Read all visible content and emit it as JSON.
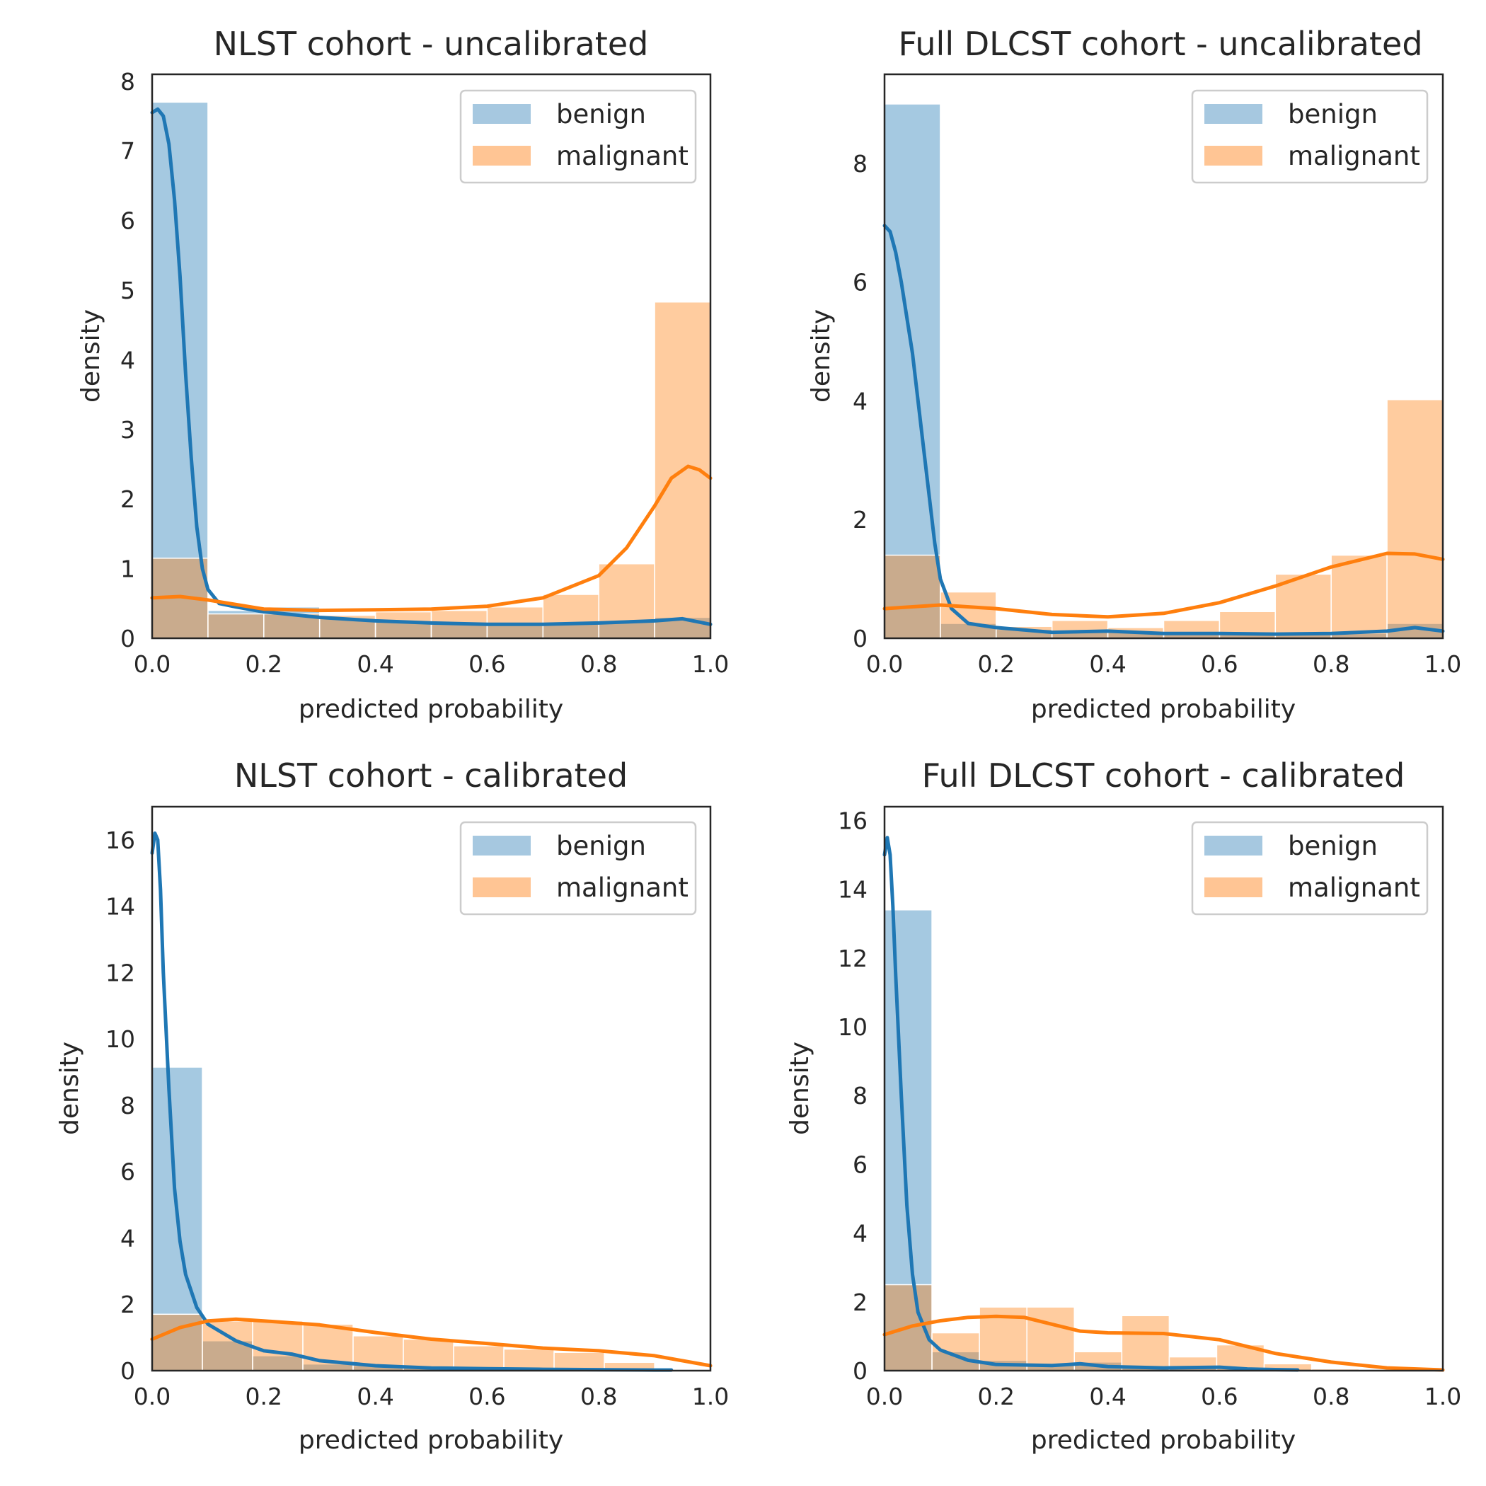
{
  "colors": {
    "benign": "#1f77b4",
    "benign_bar": "#a6c8e0",
    "malignant": "#ff7f0e",
    "malignant_bar": "#ffc594",
    "overlap_bar": "#c2a48a",
    "axis": "#262626"
  },
  "chart_data": [
    {
      "type": "bar",
      "title": "NLST cohort - uncalibrated",
      "xlabel": "predicted probability",
      "ylabel": "density",
      "xlim": [
        0,
        1
      ],
      "ylim": [
        0,
        8.1
      ],
      "xticks": [
        "0.0",
        "0.2",
        "0.4",
        "0.6",
        "0.8",
        "1.0"
      ],
      "yticks": [
        "0",
        "1",
        "2",
        "3",
        "4",
        "5",
        "6",
        "7",
        "8"
      ],
      "ytick_values": [
        0,
        1,
        2,
        3,
        4,
        5,
        6,
        7,
        8
      ],
      "grid": false,
      "legend_position": "top-right",
      "bin_edges": [
        0,
        0.1,
        0.2,
        0.3,
        0.4,
        0.5,
        0.6,
        0.7,
        0.8,
        0.9,
        1.0
      ],
      "series": [
        {
          "name": "benign",
          "hist": [
            7.7,
            0.4,
            0.45,
            0.28,
            0.25,
            0.22,
            0.22,
            0.22,
            0.25,
            0.3
          ],
          "kde": [
            [
              0,
              7.55
            ],
            [
              0.01,
              7.6
            ],
            [
              0.02,
              7.5
            ],
            [
              0.03,
              7.1
            ],
            [
              0.04,
              6.3
            ],
            [
              0.05,
              5.2
            ],
            [
              0.06,
              3.8
            ],
            [
              0.07,
              2.6
            ],
            [
              0.08,
              1.6
            ],
            [
              0.09,
              1.0
            ],
            [
              0.1,
              0.7
            ],
            [
              0.12,
              0.5
            ],
            [
              0.15,
              0.45
            ],
            [
              0.2,
              0.38
            ],
            [
              0.3,
              0.3
            ],
            [
              0.4,
              0.25
            ],
            [
              0.5,
              0.22
            ],
            [
              0.6,
              0.2
            ],
            [
              0.7,
              0.2
            ],
            [
              0.8,
              0.22
            ],
            [
              0.9,
              0.25
            ],
            [
              0.95,
              0.28
            ],
            [
              1.0,
              0.2
            ]
          ]
        },
        {
          "name": "malignant",
          "hist": [
            1.15,
            0.35,
            0.35,
            0.33,
            0.38,
            0.4,
            0.45,
            0.63,
            1.07,
            4.83
          ],
          "kde": [
            [
              0,
              0.58
            ],
            [
              0.05,
              0.6
            ],
            [
              0.1,
              0.55
            ],
            [
              0.2,
              0.42
            ],
            [
              0.3,
              0.4
            ],
            [
              0.4,
              0.41
            ],
            [
              0.5,
              0.42
            ],
            [
              0.6,
              0.46
            ],
            [
              0.7,
              0.58
            ],
            [
              0.8,
              0.9
            ],
            [
              0.85,
              1.3
            ],
            [
              0.9,
              1.9
            ],
            [
              0.93,
              2.3
            ],
            [
              0.96,
              2.47
            ],
            [
              0.98,
              2.42
            ],
            [
              1.0,
              2.3
            ]
          ]
        }
      ]
    },
    {
      "type": "bar",
      "title": "Full DLCST cohort - uncalibrated",
      "xlabel": "predicted probability",
      "ylabel": "density",
      "xlim": [
        0,
        1
      ],
      "ylim": [
        0,
        9.5
      ],
      "xticks": [
        "0.0",
        "0.2",
        "0.4",
        "0.6",
        "0.8",
        "1.0"
      ],
      "yticks": [
        "0",
        "2",
        "4",
        "6",
        "8"
      ],
      "ytick_values": [
        0,
        2,
        4,
        6,
        8
      ],
      "grid": false,
      "legend_position": "top-right",
      "bin_edges": [
        0,
        0.1,
        0.2,
        0.3,
        0.4,
        0.5,
        0.6,
        0.7,
        0.8,
        0.9,
        1.0
      ],
      "series": [
        {
          "name": "benign",
          "hist": [
            9.0,
            0.25,
            0.15,
            0.1,
            0.12,
            0.08,
            0.1,
            0.08,
            0.08,
            0.25
          ],
          "kde": [
            [
              0,
              6.95
            ],
            [
              0.01,
              6.85
            ],
            [
              0.02,
              6.5
            ],
            [
              0.03,
              6.0
            ],
            [
              0.05,
              4.8
            ],
            [
              0.07,
              3.2
            ],
            [
              0.09,
              1.6
            ],
            [
              0.1,
              1.0
            ],
            [
              0.12,
              0.5
            ],
            [
              0.15,
              0.25
            ],
            [
              0.2,
              0.18
            ],
            [
              0.3,
              0.1
            ],
            [
              0.4,
              0.12
            ],
            [
              0.5,
              0.08
            ],
            [
              0.6,
              0.08
            ],
            [
              0.7,
              0.07
            ],
            [
              0.8,
              0.08
            ],
            [
              0.9,
              0.12
            ],
            [
              0.95,
              0.18
            ],
            [
              1.0,
              0.12
            ]
          ]
        },
        {
          "name": "malignant",
          "hist": [
            1.4,
            0.78,
            0.2,
            0.3,
            0.18,
            0.3,
            0.45,
            1.08,
            1.4,
            4.02
          ],
          "kde": [
            [
              0,
              0.5
            ],
            [
              0.1,
              0.56
            ],
            [
              0.2,
              0.5
            ],
            [
              0.3,
              0.4
            ],
            [
              0.4,
              0.36
            ],
            [
              0.5,
              0.42
            ],
            [
              0.6,
              0.6
            ],
            [
              0.7,
              0.88
            ],
            [
              0.8,
              1.2
            ],
            [
              0.9,
              1.43
            ],
            [
              0.95,
              1.42
            ],
            [
              1.0,
              1.33
            ]
          ]
        }
      ]
    },
    {
      "type": "bar",
      "title": "NLST cohort - calibrated",
      "xlabel": "predicted probability",
      "ylabel": "density",
      "xlim": [
        0,
        1
      ],
      "ylim": [
        0,
        17.0
      ],
      "xticks": [
        "0.0",
        "0.2",
        "0.4",
        "0.6",
        "0.8",
        "1.0"
      ],
      "yticks": [
        "0",
        "2",
        "4",
        "6",
        "8",
        "10",
        "12",
        "14",
        "16"
      ],
      "ytick_values": [
        0,
        2,
        4,
        6,
        8,
        10,
        12,
        14,
        16
      ],
      "grid": false,
      "legend_position": "top-right",
      "bin_edges": [
        0,
        0.09,
        0.18,
        0.27,
        0.36,
        0.45,
        0.54,
        0.63,
        0.72,
        0.81,
        0.9
      ],
      "series": [
        {
          "name": "benign",
          "hist": [
            9.15,
            0.9,
            0.45,
            0.2,
            0.15,
            0.08,
            0.05,
            0.03,
            0.03,
            0.02
          ],
          "kde": [
            [
              0,
              15.6
            ],
            [
              0.005,
              16.2
            ],
            [
              0.01,
              16.0
            ],
            [
              0.015,
              14.5
            ],
            [
              0.02,
              12.0
            ],
            [
              0.03,
              8.5
            ],
            [
              0.04,
              5.5
            ],
            [
              0.05,
              3.9
            ],
            [
              0.06,
              2.9
            ],
            [
              0.08,
              1.9
            ],
            [
              0.1,
              1.4
            ],
            [
              0.15,
              0.9
            ],
            [
              0.2,
              0.6
            ],
            [
              0.25,
              0.5
            ],
            [
              0.3,
              0.3
            ],
            [
              0.4,
              0.15
            ],
            [
              0.5,
              0.08
            ],
            [
              0.6,
              0.06
            ],
            [
              0.7,
              0.04
            ],
            [
              0.8,
              0.03
            ],
            [
              0.9,
              0.02
            ],
            [
              0.93,
              0.02
            ]
          ]
        },
        {
          "name": "malignant",
          "hist": [
            1.7,
            1.5,
            1.5,
            1.4,
            1.05,
            0.95,
            0.75,
            0.65,
            0.55,
            0.25
          ],
          "kde": [
            [
              0,
              0.95
            ],
            [
              0.05,
              1.3
            ],
            [
              0.1,
              1.5
            ],
            [
              0.15,
              1.55
            ],
            [
              0.2,
              1.5
            ],
            [
              0.3,
              1.38
            ],
            [
              0.4,
              1.15
            ],
            [
              0.5,
              0.95
            ],
            [
              0.6,
              0.82
            ],
            [
              0.7,
              0.68
            ],
            [
              0.8,
              0.6
            ],
            [
              0.9,
              0.45
            ],
            [
              1.0,
              0.15
            ]
          ]
        }
      ]
    },
    {
      "type": "bar",
      "title": "Full DLCST cohort - calibrated",
      "xlabel": "predicted probability",
      "ylabel": "density",
      "xlim": [
        0,
        1
      ],
      "ylim": [
        0,
        16.4
      ],
      "xticks": [
        "0.0",
        "0.2",
        "0.4",
        "0.6",
        "0.8",
        "1.0"
      ],
      "yticks": [
        "0",
        "2",
        "4",
        "6",
        "8",
        "10",
        "12",
        "14",
        "16"
      ],
      "ytick_values": [
        0,
        2,
        4,
        6,
        8,
        10,
        12,
        14,
        16
      ],
      "grid": false,
      "legend_position": "top-right",
      "bin_edges": [
        0,
        0.085,
        0.17,
        0.255,
        0.34,
        0.425,
        0.51,
        0.595,
        0.68,
        0.765,
        0.85
      ],
      "series": [
        {
          "name": "benign",
          "hist": [
            13.4,
            0.55,
            0.3,
            0.2,
            0.25,
            0.1,
            0.1,
            0.05,
            0.05,
            0.0
          ],
          "kde": [
            [
              0,
              15.0
            ],
            [
              0.005,
              15.5
            ],
            [
              0.01,
              15.0
            ],
            [
              0.015,
              13.5
            ],
            [
              0.02,
              11.5
            ],
            [
              0.03,
              8.0
            ],
            [
              0.04,
              4.8
            ],
            [
              0.05,
              2.8
            ],
            [
              0.06,
              1.7
            ],
            [
              0.08,
              0.9
            ],
            [
              0.1,
              0.6
            ],
            [
              0.15,
              0.3
            ],
            [
              0.2,
              0.18
            ],
            [
              0.3,
              0.15
            ],
            [
              0.35,
              0.2
            ],
            [
              0.4,
              0.12
            ],
            [
              0.5,
              0.08
            ],
            [
              0.6,
              0.1
            ],
            [
              0.65,
              0.05
            ],
            [
              0.7,
              0.03
            ],
            [
              0.74,
              0.02
            ]
          ]
        },
        {
          "name": "malignant",
          "hist": [
            2.5,
            1.1,
            1.85,
            1.85,
            0.55,
            1.6,
            0.4,
            0.75,
            0.2,
            0.05
          ],
          "kde": [
            [
              0,
              1.05
            ],
            [
              0.05,
              1.3
            ],
            [
              0.1,
              1.45
            ],
            [
              0.15,
              1.55
            ],
            [
              0.2,
              1.58
            ],
            [
              0.25,
              1.55
            ],
            [
              0.3,
              1.35
            ],
            [
              0.35,
              1.15
            ],
            [
              0.4,
              1.1
            ],
            [
              0.5,
              1.08
            ],
            [
              0.6,
              0.9
            ],
            [
              0.7,
              0.5
            ],
            [
              0.8,
              0.25
            ],
            [
              0.9,
              0.08
            ],
            [
              1.0,
              0.02
            ]
          ]
        }
      ]
    }
  ]
}
